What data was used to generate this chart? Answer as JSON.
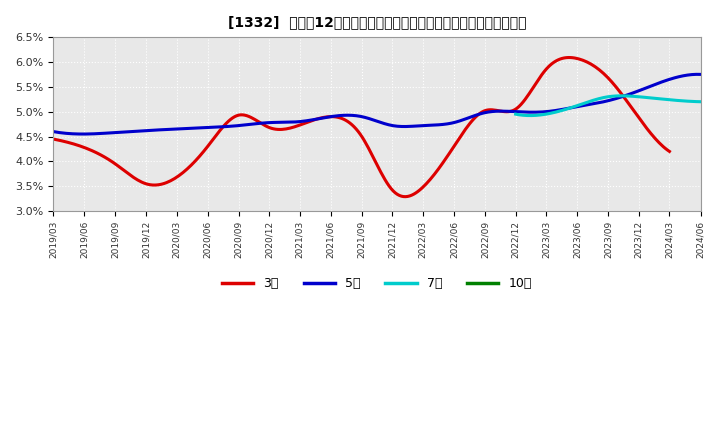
{
  "title": "[1332]  売上高12か月移動合計の対前年同期増減率の標準偏差の推移",
  "ylim": [
    0.03,
    0.065
  ],
  "yticks": [
    0.03,
    0.035,
    0.04,
    0.045,
    0.05,
    0.055,
    0.06,
    0.065
  ],
  "ytick_labels": [
    "3.0%",
    "3.5%",
    "4.0%",
    "4.5%",
    "5.0%",
    "5.5%",
    "6.0%",
    "6.5%"
  ],
  "background_color": "#ffffff",
  "plot_bg_color": "#e8e8e8",
  "grid_color": "#ffffff",
  "series": {
    "3年": {
      "color": "#dd0000",
      "points": [
        [
          "2019/03",
          0.0445
        ],
        [
          "2019/06",
          0.0428
        ],
        [
          "2019/09",
          0.0395
        ],
        [
          "2019/12",
          0.0355
        ],
        [
          "2020/03",
          0.0368
        ],
        [
          "2020/06",
          0.043
        ],
        [
          "2020/09",
          0.0493
        ],
        [
          "2020/12",
          0.0468
        ],
        [
          "2021/03",
          0.0473
        ],
        [
          "2021/06",
          0.049
        ],
        [
          "2021/09",
          0.045
        ],
        [
          "2021/12",
          0.0342
        ],
        [
          "2022/03",
          0.0348
        ],
        [
          "2022/06",
          0.043
        ],
        [
          "2022/09",
          0.0502
        ],
        [
          "2022/12",
          0.0505
        ],
        [
          "2023/03",
          0.0585
        ],
        [
          "2023/06",
          0.0607
        ],
        [
          "2023/09",
          0.0568
        ],
        [
          "2023/12",
          0.0488
        ],
        [
          "2024/03",
          0.042
        ]
      ]
    },
    "5年": {
      "color": "#0000cc",
      "points": [
        [
          "2019/03",
          0.046
        ],
        [
          "2019/06",
          0.0455
        ],
        [
          "2019/09",
          0.0458
        ],
        [
          "2019/12",
          0.0462
        ],
        [
          "2020/03",
          0.0465
        ],
        [
          "2020/06",
          0.0468
        ],
        [
          "2020/09",
          0.0472
        ],
        [
          "2020/12",
          0.0478
        ],
        [
          "2021/03",
          0.048
        ],
        [
          "2021/06",
          0.049
        ],
        [
          "2021/09",
          0.049
        ],
        [
          "2021/12",
          0.0472
        ],
        [
          "2022/03",
          0.0472
        ],
        [
          "2022/06",
          0.0478
        ],
        [
          "2022/09",
          0.0498
        ],
        [
          "2022/12",
          0.05
        ],
        [
          "2023/03",
          0.05
        ],
        [
          "2023/06",
          0.051
        ],
        [
          "2023/09",
          0.0522
        ],
        [
          "2023/12",
          0.0542
        ],
        [
          "2024/03",
          0.0565
        ],
        [
          "2024/06",
          0.0575
        ]
      ]
    },
    "7年": {
      "color": "#00cccc",
      "points": [
        [
          "2022/12",
          0.0495
        ],
        [
          "2023/03",
          0.0495
        ],
        [
          "2023/06",
          0.0512
        ],
        [
          "2023/09",
          0.053
        ],
        [
          "2023/12",
          0.053
        ],
        [
          "2024/03",
          0.0524
        ],
        [
          "2024/06",
          0.052
        ]
      ]
    },
    "10年": {
      "color": "#008000",
      "points": []
    }
  },
  "x_tick_labels": [
    "2019/03",
    "2019/06",
    "2019/09",
    "2019/12",
    "2020/03",
    "2020/06",
    "2020/09",
    "2020/12",
    "2021/03",
    "2021/06",
    "2021/09",
    "2021/12",
    "2022/03",
    "2022/06",
    "2022/09",
    "2022/12",
    "2023/03",
    "2023/06",
    "2023/09",
    "2023/12",
    "2024/03",
    "2024/06"
  ],
  "legend_entries": [
    "3年",
    "5年",
    "7年",
    "10年"
  ],
  "legend_colors": [
    "#dd0000",
    "#0000cc",
    "#00cccc",
    "#008000"
  ]
}
